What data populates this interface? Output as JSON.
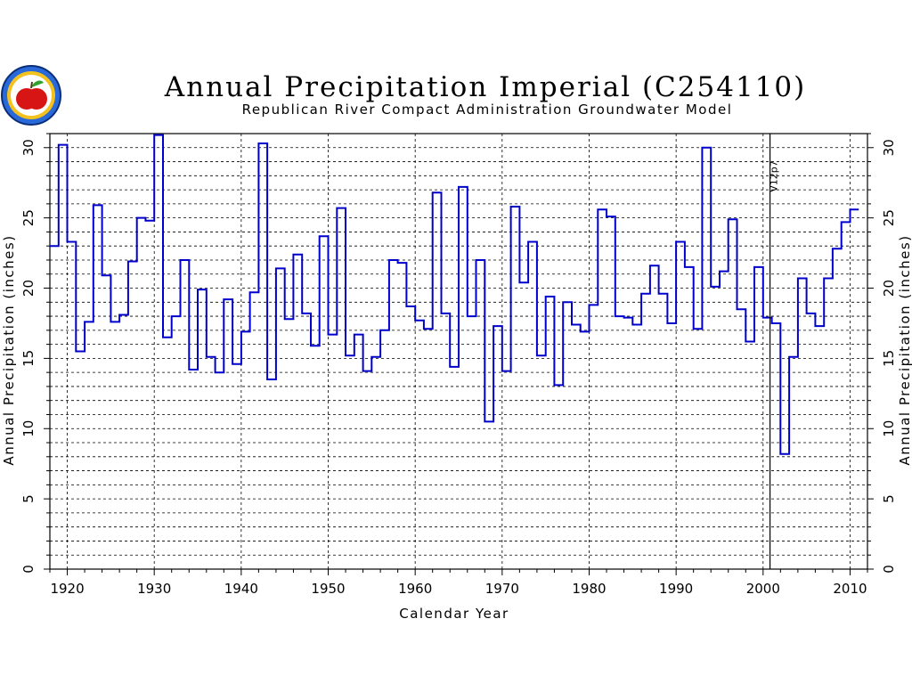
{
  "chart_data": {
    "type": "line",
    "step": true,
    "title": "Annual Precipitation Imperial (C254110)",
    "subtitle": "Republican River Compact Administration Groundwater Model",
    "xlabel": "Calendar Year",
    "ylabel": "Annual Precipitation (inches)",
    "xlim": [
      1918,
      2012
    ],
    "ylim": [
      0,
      31
    ],
    "x_ticks": [
      1920,
      1930,
      1940,
      1950,
      1960,
      1970,
      1980,
      1990,
      2000,
      2010
    ],
    "y_ticks": [
      0,
      5,
      10,
      15,
      20,
      25,
      30
    ],
    "grid": "dashed, vertical every 10 years, horizontal every 1 inch",
    "annotations": [
      {
        "text": "V12p7",
        "x": 2001
      }
    ],
    "series_color": "#0000cc",
    "logo": "seal-logo",
    "x": [
      1918,
      1919,
      1920,
      1921,
      1922,
      1923,
      1924,
      1925,
      1926,
      1927,
      1928,
      1929,
      1930,
      1931,
      1932,
      1933,
      1934,
      1935,
      1936,
      1937,
      1938,
      1939,
      1940,
      1941,
      1942,
      1943,
      1944,
      1945,
      1946,
      1947,
      1948,
      1949,
      1950,
      1951,
      1952,
      1953,
      1954,
      1955,
      1956,
      1957,
      1958,
      1959,
      1960,
      1961,
      1962,
      1963,
      1964,
      1965,
      1966,
      1967,
      1968,
      1969,
      1970,
      1971,
      1972,
      1973,
      1974,
      1975,
      1976,
      1977,
      1978,
      1979,
      1980,
      1981,
      1982,
      1983,
      1984,
      1985,
      1986,
      1987,
      1988,
      1989,
      1990,
      1991,
      1992,
      1993,
      1994,
      1995,
      1996,
      1997,
      1998,
      1999,
      2000,
      2001,
      2002,
      2003,
      2004,
      2005,
      2006,
      2007,
      2008,
      2009,
      2010
    ],
    "values": [
      23.0,
      30.2,
      23.3,
      15.5,
      17.6,
      25.9,
      20.9,
      17.6,
      18.1,
      21.9,
      25.0,
      24.8,
      30.9,
      16.5,
      18.0,
      22.0,
      14.2,
      19.9,
      15.1,
      14.0,
      19.2,
      14.6,
      16.9,
      19.7,
      30.3,
      13.5,
      21.4,
      17.8,
      22.4,
      18.2,
      15.9,
      23.7,
      16.7,
      25.7,
      15.2,
      16.7,
      14.1,
      15.1,
      17.0,
      22.0,
      21.8,
      18.7,
      17.7,
      17.1,
      26.8,
      18.2,
      14.4,
      27.2,
      18.0,
      22.0,
      10.5,
      17.3,
      14.1,
      25.8,
      20.4,
      23.3,
      15.2,
      19.4,
      13.1,
      19.0,
      17.4,
      16.9,
      18.8,
      25.6,
      25.1,
      18.0,
      17.9,
      17.4,
      19.6,
      21.6,
      19.6,
      17.5,
      23.3,
      21.5,
      17.1,
      30.0,
      20.1,
      21.2,
      24.9,
      18.5,
      16.2,
      21.5,
      17.9,
      17.5,
      8.2,
      15.1,
      20.7,
      18.2,
      17.3,
      20.7,
      22.8,
      24.7,
      25.6
    ]
  }
}
